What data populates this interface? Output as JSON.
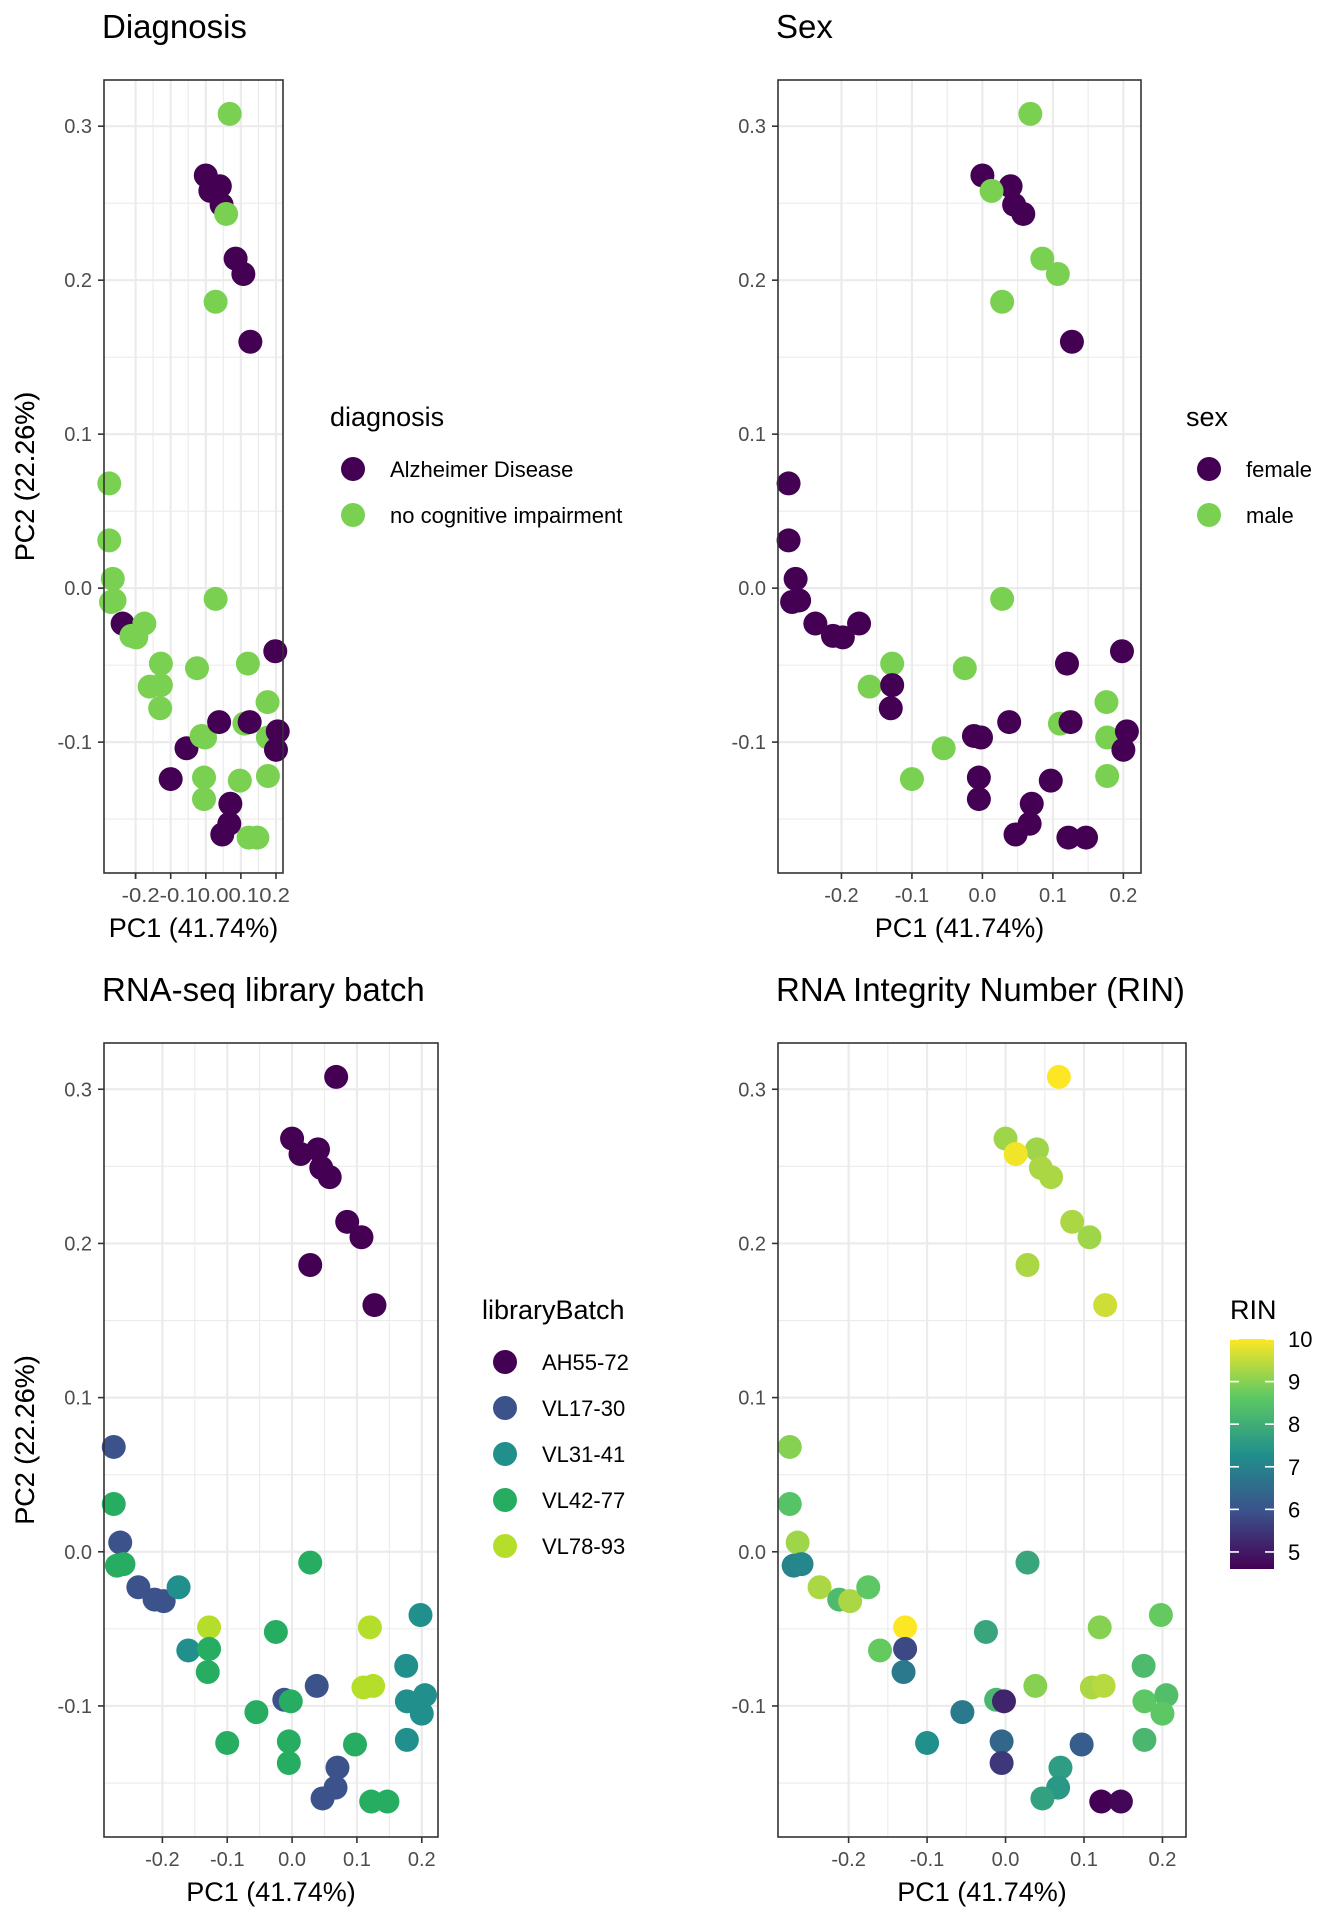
{
  "points": [
    {
      "pc1": 0.068,
      "pc2": 0.308,
      "diagnosis": 1,
      "sex": 1,
      "batch": 0,
      "rin": 10.0
    },
    {
      "pc1": 0.0,
      "pc2": 0.268,
      "diagnosis": 0,
      "sex": 0,
      "batch": 0,
      "rin": 9.2
    },
    {
      "pc1": 0.04,
      "pc2": 0.261,
      "diagnosis": 0,
      "sex": 0,
      "batch": 0,
      "rin": 9.2
    },
    {
      "pc1": 0.013,
      "pc2": 0.258,
      "diagnosis": 0,
      "sex": 1,
      "batch": 0,
      "rin": 9.9
    },
    {
      "pc1": 0.045,
      "pc2": 0.249,
      "diagnosis": 0,
      "sex": 0,
      "batch": 0,
      "rin": 9.3
    },
    {
      "pc1": 0.058,
      "pc2": 0.243,
      "diagnosis": 1,
      "sex": 0,
      "batch": 0,
      "rin": 9.3
    },
    {
      "pc1": 0.085,
      "pc2": 0.214,
      "diagnosis": 0,
      "sex": 1,
      "batch": 0,
      "rin": 9.3
    },
    {
      "pc1": 0.107,
      "pc2": 0.204,
      "diagnosis": 0,
      "sex": 1,
      "batch": 0,
      "rin": 9.2
    },
    {
      "pc1": 0.028,
      "pc2": 0.186,
      "diagnosis": 1,
      "sex": 1,
      "batch": 0,
      "rin": 9.3
    },
    {
      "pc1": 0.127,
      "pc2": 0.16,
      "diagnosis": 0,
      "sex": 0,
      "batch": 0,
      "rin": 9.6
    },
    {
      "pc1": -0.275,
      "pc2": 0.068,
      "diagnosis": 1,
      "sex": 0,
      "batch": 1,
      "rin": 9.0
    },
    {
      "pc1": -0.275,
      "pc2": 0.031,
      "diagnosis": 1,
      "sex": 0,
      "batch": 3,
      "rin": 8.5
    },
    {
      "pc1": -0.265,
      "pc2": 0.006,
      "diagnosis": 1,
      "sex": 0,
      "batch": 1,
      "rin": 9.2
    },
    {
      "pc1": -0.27,
      "pc2": -0.009,
      "diagnosis": 1,
      "sex": 0,
      "batch": 3,
      "rin": 7.0
    },
    {
      "pc1": -0.26,
      "pc2": -0.008,
      "diagnosis": 1,
      "sex": 0,
      "batch": 3,
      "rin": 7.1
    },
    {
      "pc1": -0.237,
      "pc2": -0.023,
      "diagnosis": 0,
      "sex": 0,
      "batch": 1,
      "rin": 9.3
    },
    {
      "pc1": -0.212,
      "pc2": -0.031,
      "diagnosis": 1,
      "sex": 0,
      "batch": 1,
      "rin": 8.3
    },
    {
      "pc1": -0.198,
      "pc2": -0.032,
      "diagnosis": 1,
      "sex": 0,
      "batch": 1,
      "rin": 9.3
    },
    {
      "pc1": -0.175,
      "pc2": -0.023,
      "diagnosis": 1,
      "sex": 0,
      "batch": 2,
      "rin": 8.6
    },
    {
      "pc1": -0.16,
      "pc2": -0.064,
      "diagnosis": 1,
      "sex": 1,
      "batch": 2,
      "rin": 8.7
    },
    {
      "pc1": -0.128,
      "pc2": -0.049,
      "diagnosis": 1,
      "sex": 1,
      "batch": 4,
      "rin": 10.0
    },
    {
      "pc1": -0.128,
      "pc2": -0.063,
      "diagnosis": 1,
      "sex": 0,
      "batch": 3,
      "rin": 5.8
    },
    {
      "pc1": -0.13,
      "pc2": -0.078,
      "diagnosis": 1,
      "sex": 0,
      "batch": 3,
      "rin": 6.8
    },
    {
      "pc1": -0.025,
      "pc2": -0.052,
      "diagnosis": 1,
      "sex": 1,
      "batch": 3,
      "rin": 7.8
    },
    {
      "pc1": 0.028,
      "pc2": -0.007,
      "diagnosis": 1,
      "sex": 1,
      "batch": 3,
      "rin": 7.8
    },
    {
      "pc1": -0.055,
      "pc2": -0.104,
      "diagnosis": 0,
      "sex": 1,
      "batch": 3,
      "rin": 6.8
    },
    {
      "pc1": -0.1,
      "pc2": -0.124,
      "diagnosis": 0,
      "sex": 1,
      "batch": 3,
      "rin": 7.3
    },
    {
      "pc1": -0.012,
      "pc2": -0.096,
      "diagnosis": 1,
      "sex": 0,
      "batch": 1,
      "rin": 8.2
    },
    {
      "pc1": -0.002,
      "pc2": -0.097,
      "diagnosis": 1,
      "sex": 0,
      "batch": 3,
      "rin": 5.2
    },
    {
      "pc1": 0.038,
      "pc2": -0.087,
      "diagnosis": 0,
      "sex": 0,
      "batch": 1,
      "rin": 9.0
    },
    {
      "pc1": -0.005,
      "pc2": -0.123,
      "diagnosis": 1,
      "sex": 0,
      "batch": 3,
      "rin": 6.4
    },
    {
      "pc1": -0.005,
      "pc2": -0.137,
      "diagnosis": 1,
      "sex": 0,
      "batch": 3,
      "rin": 5.5
    },
    {
      "pc1": 0.097,
      "pc2": -0.125,
      "diagnosis": 1,
      "sex": 0,
      "batch": 3,
      "rin": 6.2
    },
    {
      "pc1": 0.07,
      "pc2": -0.14,
      "diagnosis": 0,
      "sex": 0,
      "batch": 1,
      "rin": 7.6
    },
    {
      "pc1": 0.067,
      "pc2": -0.153,
      "diagnosis": 0,
      "sex": 0,
      "batch": 1,
      "rin": 7.5
    },
    {
      "pc1": 0.047,
      "pc2": -0.16,
      "diagnosis": 0,
      "sex": 0,
      "batch": 1,
      "rin": 7.7
    },
    {
      "pc1": 0.122,
      "pc2": -0.162,
      "diagnosis": 1,
      "sex": 0,
      "batch": 3,
      "rin": 4.6
    },
    {
      "pc1": 0.147,
      "pc2": -0.162,
      "diagnosis": 1,
      "sex": 0,
      "batch": 3,
      "rin": 4.7
    },
    {
      "pc1": 0.11,
      "pc2": -0.088,
      "diagnosis": 1,
      "sex": 1,
      "batch": 4,
      "rin": 9.3
    },
    {
      "pc1": 0.125,
      "pc2": -0.087,
      "diagnosis": 0,
      "sex": 0,
      "batch": 4,
      "rin": 9.4
    },
    {
      "pc1": 0.12,
      "pc2": -0.049,
      "diagnosis": 1,
      "sex": 0,
      "batch": 4,
      "rin": 9.0
    },
    {
      "pc1": 0.176,
      "pc2": -0.074,
      "diagnosis": 1,
      "sex": 1,
      "batch": 2,
      "rin": 8.3
    },
    {
      "pc1": 0.177,
      "pc2": -0.097,
      "diagnosis": 1,
      "sex": 1,
      "batch": 2,
      "rin": 8.6
    },
    {
      "pc1": 0.177,
      "pc2": -0.122,
      "diagnosis": 1,
      "sex": 1,
      "batch": 2,
      "rin": 8.2
    },
    {
      "pc1": 0.198,
      "pc2": -0.041,
      "diagnosis": 0,
      "sex": 0,
      "batch": 2,
      "rin": 8.7
    },
    {
      "pc1": 0.205,
      "pc2": -0.093,
      "diagnosis": 0,
      "sex": 0,
      "batch": 2,
      "rin": 8.4
    },
    {
      "pc1": 0.2,
      "pc2": -0.105,
      "diagnosis": 0,
      "sex": 0,
      "batch": 2,
      "rin": 8.6
    }
  ],
  "chart_data": [
    {
      "type": "scatter",
      "title": "Diagnosis",
      "xlabel": "PC1 (41.74%)",
      "ylabel": "PC2 (22.26%)",
      "color_by": "diagnosis",
      "legend": {
        "title": "diagnosis",
        "placement": "right",
        "kind": "discrete",
        "entries": [
          "Alzheimer Disease",
          "no cognitive impairment"
        ],
        "colors": [
          "#440154",
          "#7ad151"
        ]
      },
      "xticks": [
        "-0.2",
        "-0.1",
        "0.0",
        "0.1",
        "0.2"
      ],
      "xtick_values": [
        -0.2,
        -0.1,
        0.0,
        0.1,
        0.2
      ],
      "yticks": [
        "-0.1",
        "0.0",
        "0.1",
        "0.2",
        "0.3"
      ],
      "ytick_values": [
        -0.1,
        0.0,
        0.1,
        0.2,
        0.3
      ],
      "xlim": [
        -0.29,
        0.22
      ],
      "ylim": [
        -0.185,
        0.33
      ],
      "xlabel_join": true,
      "grid": true
    },
    {
      "type": "scatter",
      "title": "Sex",
      "xlabel": "PC1 (41.74%)",
      "ylabel": "PC2 (22.26%)",
      "color_by": "sex",
      "legend": {
        "title": "sex",
        "placement": "right",
        "kind": "discrete",
        "entries": [
          "female",
          "male"
        ],
        "colors": [
          "#440154",
          "#7ad151"
        ]
      },
      "xticks": [
        "-0.2",
        "-0.1",
        "0.0",
        "0.1",
        "0.2"
      ],
      "xtick_values": [
        -0.2,
        -0.1,
        0.0,
        0.1,
        0.2
      ],
      "yticks": [
        "-0.1",
        "0.0",
        "0.1",
        "0.2",
        "0.3"
      ],
      "ytick_values": [
        -0.1,
        0.0,
        0.1,
        0.2,
        0.3
      ],
      "xlim": [
        -0.29,
        0.225
      ],
      "ylim": [
        -0.185,
        0.33
      ],
      "grid": true
    },
    {
      "type": "scatter",
      "title": "RNA-seq library batch",
      "xlabel": "PC1 (41.74%)",
      "ylabel": "PC2 (22.26%)",
      "color_by": "batch",
      "legend": {
        "title": "libraryBatch",
        "placement": "right",
        "kind": "discrete",
        "entries": [
          "AH55-72",
          "VL17-30",
          "VL31-41",
          "VL42-77",
          "VL78-93"
        ],
        "colors": [
          "#440154",
          "#3b528b",
          "#21908c",
          "#27ad61",
          "#b5de2b"
        ]
      },
      "xticks": [
        "-0.2",
        "-0.1",
        "0.0",
        "0.1",
        "0.2"
      ],
      "xtick_values": [
        -0.2,
        -0.1,
        0.0,
        0.1,
        0.2
      ],
      "yticks": [
        "-0.1",
        "0.0",
        "0.1",
        "0.2",
        "0.3"
      ],
      "ytick_values": [
        -0.1,
        0.0,
        0.1,
        0.2,
        0.3
      ],
      "xlim": [
        -0.29,
        0.225
      ],
      "ylim": [
        -0.185,
        0.33
      ],
      "grid": true
    },
    {
      "type": "scatter",
      "title": "RNA Integrity Number (RIN)",
      "xlabel": "PC1 (41.74%)",
      "ylabel": "PC2 (22.26%)",
      "color_by": "rin",
      "legend": {
        "title": "RIN",
        "placement": "right",
        "kind": "continuous",
        "labels": [
          "10",
          "9",
          "8",
          "7",
          "6",
          "5"
        ],
        "values": [
          10,
          9,
          8,
          7,
          6,
          5
        ],
        "range": [
          4.6,
          10.0
        ],
        "colors": [
          "#440154",
          "#3b528b",
          "#21908c",
          "#5ec962",
          "#fde725"
        ]
      },
      "xticks": [
        "-0.2",
        "-0.1",
        "0.0",
        "0.1",
        "0.2"
      ],
      "xtick_values": [
        -0.2,
        -0.1,
        0.0,
        0.1,
        0.2
      ],
      "yticks": [
        "-0.1",
        "0.0",
        "0.1",
        "0.2",
        "0.3"
      ],
      "ytick_values": [
        -0.1,
        0.0,
        0.1,
        0.2,
        0.3
      ],
      "xlim": [
        -0.29,
        0.23
      ],
      "ylim": [
        -0.185,
        0.33
      ],
      "grid": true
    }
  ]
}
